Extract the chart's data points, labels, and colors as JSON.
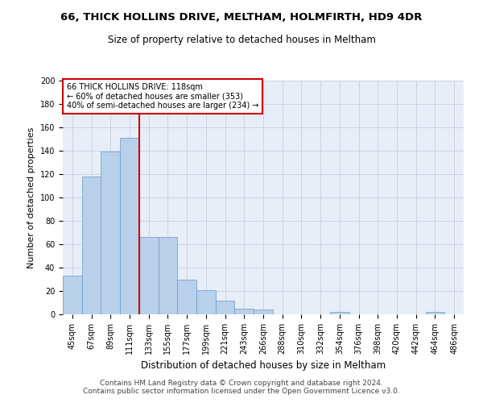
{
  "title1": "66, THICK HOLLINS DRIVE, MELTHAM, HOLMFIRTH, HD9 4DR",
  "title2": "Size of property relative to detached houses in Meltham",
  "xlabel": "Distribution of detached houses by size in Meltham",
  "ylabel": "Number of detached properties",
  "categories": [
    "45sqm",
    "67sqm",
    "89sqm",
    "111sqm",
    "133sqm",
    "155sqm",
    "177sqm",
    "199sqm",
    "221sqm",
    "243sqm",
    "266sqm",
    "288sqm",
    "310sqm",
    "332sqm",
    "354sqm",
    "376sqm",
    "398sqm",
    "420sqm",
    "442sqm",
    "464sqm",
    "486sqm"
  ],
  "values": [
    33,
    118,
    139,
    151,
    66,
    66,
    30,
    21,
    12,
    5,
    4,
    0,
    0,
    0,
    2,
    0,
    0,
    0,
    0,
    2,
    0
  ],
  "bar_color": "#b8d0ea",
  "bar_edge_color": "#6699cc",
  "vline_x": 3.5,
  "vline_color": "#cc0000",
  "annotation_box_text": "66 THICK HOLLINS DRIVE: 118sqm\n← 60% of detached houses are smaller (353)\n40% of semi-detached houses are larger (234) →",
  "annotation_box_color": "#cc0000",
  "ylim": [
    0,
    200
  ],
  "yticks": [
    0,
    20,
    40,
    60,
    80,
    100,
    120,
    140,
    160,
    180,
    200
  ],
  "grid_color": "#c8d4e8",
  "bg_color": "#e8eef8",
  "footer_text": "Contains HM Land Registry data © Crown copyright and database right 2024.\nContains public sector information licensed under the Open Government Licence v3.0.",
  "title1_fontsize": 9.5,
  "title2_fontsize": 8.5,
  "xlabel_fontsize": 8.5,
  "ylabel_fontsize": 8,
  "tick_fontsize": 7,
  "annotation_fontsize": 7,
  "footer_fontsize": 6.5
}
